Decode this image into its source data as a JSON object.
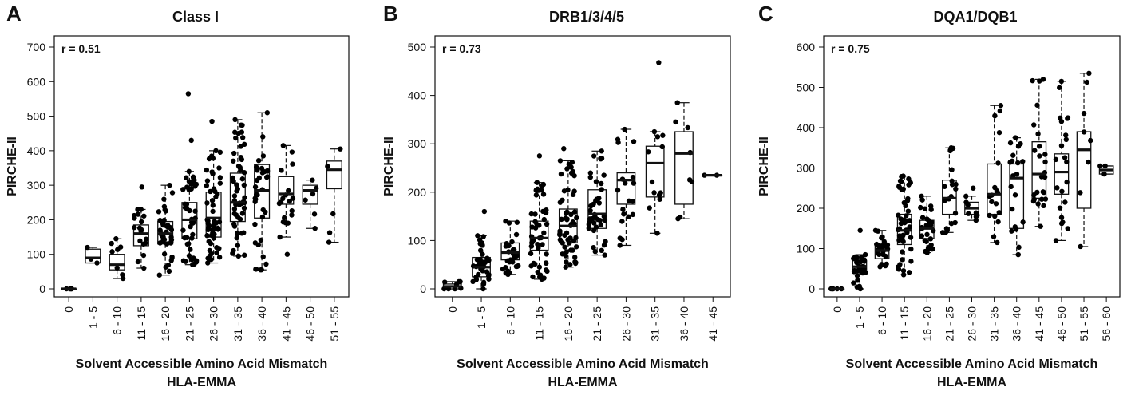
{
  "colors": {
    "axis": "#111111",
    "box_fill": "#ffffff",
    "point": "#000000"
  },
  "chart_data": [
    {
      "type": "box",
      "panel": "A",
      "title": "Class I",
      "annotation": "r = 0.51",
      "xlabel": "Solvent Accessible Amino Acid Mismatch",
      "xlabel2": "HLA-EMMA",
      "ylabel": "PIRCHE-II",
      "ylim": [
        0,
        700
      ],
      "yticks": [
        0,
        100,
        200,
        300,
        400,
        500,
        600,
        700
      ],
      "grid": false,
      "categories": [
        "0",
        "1 - 5",
        "6 - 10",
        "11 - 15",
        "16 - 20",
        "21 - 25",
        "26 - 30",
        "31 - 35",
        "36 - 40",
        "41 - 45",
        "46 - 50",
        "51 - 55"
      ],
      "boxes": [
        {
          "min": 0,
          "q1": 0,
          "median": 0,
          "q3": 0,
          "max": 0,
          "n": 5
        },
        {
          "min": 75,
          "q1": 75,
          "median": 90,
          "q3": 115,
          "max": 120,
          "n": 3
        },
        {
          "min": 30,
          "q1": 55,
          "median": 70,
          "q3": 100,
          "max": 145,
          "n": 8
        },
        {
          "min": 60,
          "q1": 125,
          "median": 160,
          "q3": 185,
          "max": 230,
          "n": 18
        },
        {
          "min": 40,
          "q1": 130,
          "median": 160,
          "q3": 195,
          "max": 300,
          "n": 40
        },
        {
          "min": 70,
          "q1": 145,
          "median": 200,
          "q3": 250,
          "max": 340,
          "n": 45
        },
        {
          "min": 75,
          "q1": 150,
          "median": 205,
          "q3": 280,
          "max": 400,
          "n": 55
        },
        {
          "min": 95,
          "q1": 195,
          "median": 250,
          "q3": 335,
          "max": 490,
          "n": 55
        },
        {
          "min": 55,
          "q1": 205,
          "median": 285,
          "q3": 360,
          "max": 510,
          "n": 35
        },
        {
          "min": 150,
          "q1": 245,
          "median": 275,
          "q3": 325,
          "max": 415,
          "n": 18
        },
        {
          "min": 175,
          "q1": 245,
          "median": 285,
          "q3": 300,
          "max": 315,
          "n": 6
        },
        {
          "min": 135,
          "q1": 290,
          "median": 345,
          "q3": 370,
          "max": 405,
          "n": 5
        }
      ],
      "outliers": [
        {
          "cat": 5,
          "value": 565
        },
        {
          "cat": 5,
          "value": 430
        },
        {
          "cat": 6,
          "value": 485
        },
        {
          "cat": 9,
          "value": 100
        },
        {
          "cat": 3,
          "value": 295
        }
      ]
    },
    {
      "type": "box",
      "panel": "B",
      "title": "DRB1/3/4/5",
      "annotation": "r = 0.73",
      "xlabel": "Solvent Accessible Amino Acid Mismatch",
      "xlabel2": "HLA-EMMA",
      "ylabel": "PIRCHE-II",
      "ylim": [
        0,
        500
      ],
      "yticks": [
        0,
        100,
        200,
        300,
        400,
        500
      ],
      "grid": false,
      "categories": [
        "0",
        "1 - 5",
        "6 - 10",
        "11 - 15",
        "16 - 20",
        "21 - 25",
        "26 - 30",
        "31 - 35",
        "36 - 40",
        "41 - 45"
      ],
      "boxes": [
        {
          "min": 0,
          "q1": 0,
          "median": 5,
          "q3": 10,
          "max": 15,
          "n": 8
        },
        {
          "min": 0,
          "q1": 25,
          "median": 45,
          "q3": 65,
          "max": 110,
          "n": 35
        },
        {
          "min": 30,
          "q1": 60,
          "median": 75,
          "q3": 95,
          "max": 140,
          "n": 30
        },
        {
          "min": 20,
          "q1": 80,
          "median": 105,
          "q3": 140,
          "max": 220,
          "n": 50
        },
        {
          "min": 45,
          "q1": 95,
          "median": 130,
          "q3": 165,
          "max": 265,
          "n": 55
        },
        {
          "min": 70,
          "q1": 125,
          "median": 155,
          "q3": 205,
          "max": 285,
          "n": 40
        },
        {
          "min": 90,
          "q1": 175,
          "median": 225,
          "q3": 240,
          "max": 330,
          "n": 20
        },
        {
          "min": 115,
          "q1": 190,
          "median": 260,
          "q3": 295,
          "max": 325,
          "n": 12
        },
        {
          "min": 145,
          "q1": 175,
          "median": 280,
          "q3": 325,
          "max": 385,
          "n": 8
        },
        {
          "min": 235,
          "q1": 235,
          "median": 235,
          "q3": 235,
          "max": 235,
          "n": 2
        }
      ],
      "outliers": [
        {
          "cat": 7,
          "value": 468
        },
        {
          "cat": 1,
          "value": 160
        },
        {
          "cat": 3,
          "value": 275
        },
        {
          "cat": 4,
          "value": 290
        }
      ]
    },
    {
      "type": "box",
      "panel": "C",
      "title": "DQA1/DQB1",
      "annotation": "r = 0.75",
      "xlabel": "Solvent Accessible Amino Acid Mismatch",
      "xlabel2": "HLA-EMMA",
      "ylabel": "PIRCHE-II",
      "ylim": [
        0,
        600
      ],
      "yticks": [
        0,
        100,
        200,
        300,
        400,
        500,
        600
      ],
      "grid": false,
      "categories": [
        "0",
        "1 - 5",
        "6 - 10",
        "11 - 15",
        "16 - 20",
        "21 - 25",
        "26 - 30",
        "31 - 35",
        "36 - 40",
        "41 - 45",
        "46 - 50",
        "51 - 55",
        "56 - 60"
      ],
      "boxes": [
        {
          "min": 0,
          "q1": 0,
          "median": 0,
          "q3": 0,
          "max": 0,
          "n": 5
        },
        {
          "min": 0,
          "q1": 40,
          "median": 55,
          "q3": 70,
          "max": 85,
          "n": 30
        },
        {
          "min": 55,
          "q1": 75,
          "median": 95,
          "q3": 110,
          "max": 145,
          "n": 25
        },
        {
          "min": 35,
          "q1": 110,
          "median": 145,
          "q3": 185,
          "max": 280,
          "n": 50
        },
        {
          "min": 90,
          "q1": 125,
          "median": 150,
          "q3": 170,
          "max": 230,
          "n": 30
        },
        {
          "min": 140,
          "q1": 185,
          "median": 225,
          "q3": 270,
          "max": 350,
          "n": 20
        },
        {
          "min": 170,
          "q1": 185,
          "median": 200,
          "q3": 215,
          "max": 230,
          "n": 8
        },
        {
          "min": 115,
          "q1": 185,
          "median": 235,
          "q3": 310,
          "max": 455,
          "n": 18
        },
        {
          "min": 85,
          "q1": 150,
          "median": 275,
          "q3": 310,
          "max": 375,
          "n": 20
        },
        {
          "min": 155,
          "q1": 225,
          "median": 285,
          "q3": 365,
          "max": 520,
          "n": 25
        },
        {
          "min": 120,
          "q1": 235,
          "median": 290,
          "q3": 335,
          "max": 515,
          "n": 22
        },
        {
          "min": 105,
          "q1": 200,
          "median": 345,
          "q3": 390,
          "max": 535,
          "n": 8
        },
        {
          "min": 285,
          "q1": 285,
          "median": 295,
          "q3": 305,
          "max": 305,
          "n": 3
        }
      ],
      "outliers": [
        {
          "cat": 1,
          "value": 145
        },
        {
          "cat": 6,
          "value": 250
        }
      ]
    }
  ]
}
